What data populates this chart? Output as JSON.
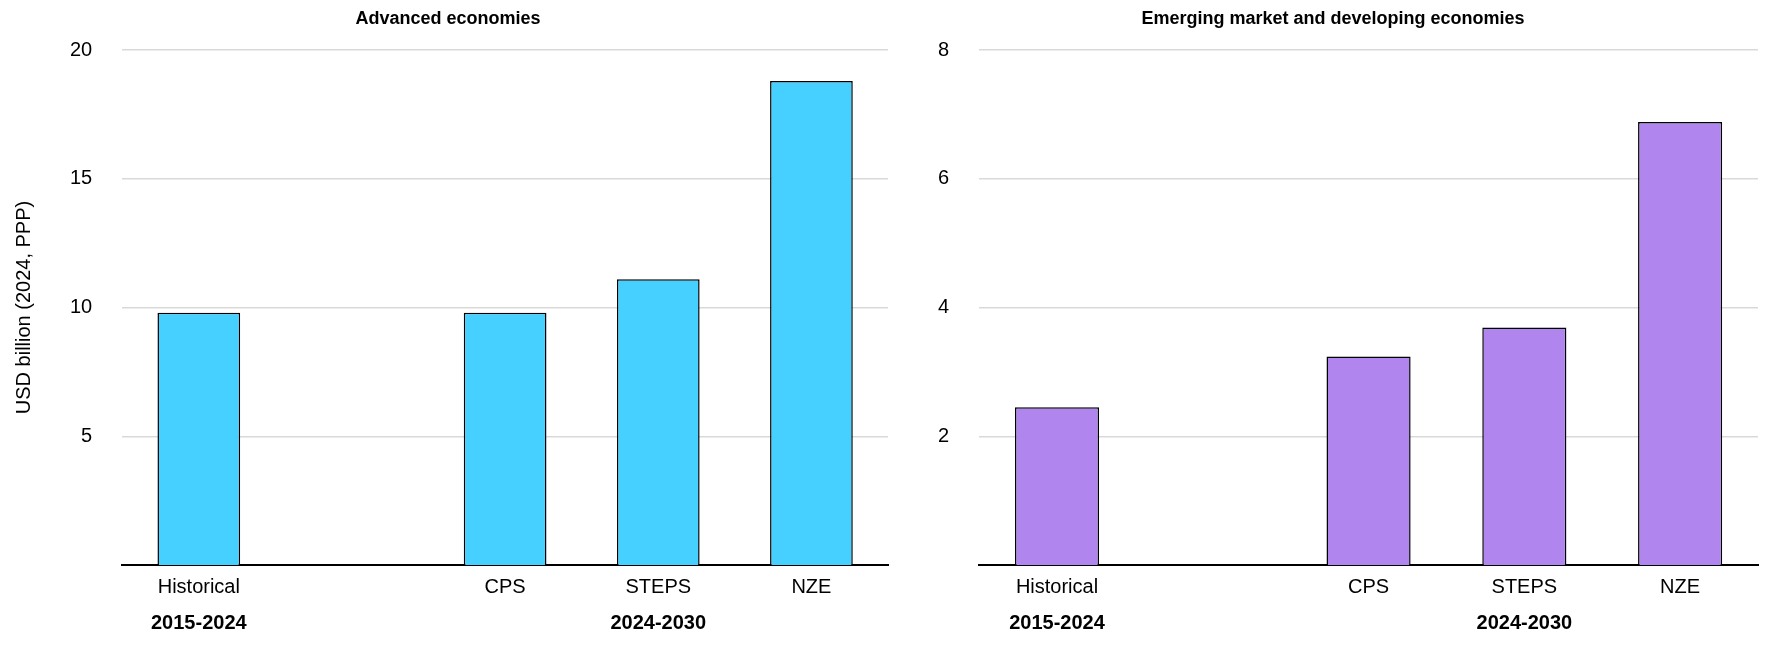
{
  "chart_data": [
    {
      "type": "bar",
      "title": "Advanced economies",
      "ylabel": "USD billion (2024, PPP)",
      "categories": [
        "Historical",
        null,
        "CPS",
        "STEPS",
        "NZE"
      ],
      "values": [
        9.8,
        null,
        9.8,
        11.1,
        18.8
      ],
      "color": "#45d0ff",
      "ylim": [
        0,
        20
      ],
      "yticks": [
        5,
        10,
        15,
        20
      ],
      "grid": "y",
      "legend": false,
      "annotations": [
        "2015-2024",
        "2024-2030"
      ]
    },
    {
      "type": "bar",
      "title": "Emerging market and developing economies",
      "categories": [
        "Historical",
        null,
        "CPS",
        "STEPS",
        "NZE"
      ],
      "values": [
        2.45,
        null,
        3.24,
        3.69,
        6.88
      ],
      "color": "#b085ee",
      "ylim": [
        0,
        8
      ],
      "yticks": [
        2,
        4,
        6,
        8
      ],
      "grid": "y",
      "legend": false,
      "annotations": [
        "2015-2024",
        "2024-2030"
      ]
    }
  ]
}
